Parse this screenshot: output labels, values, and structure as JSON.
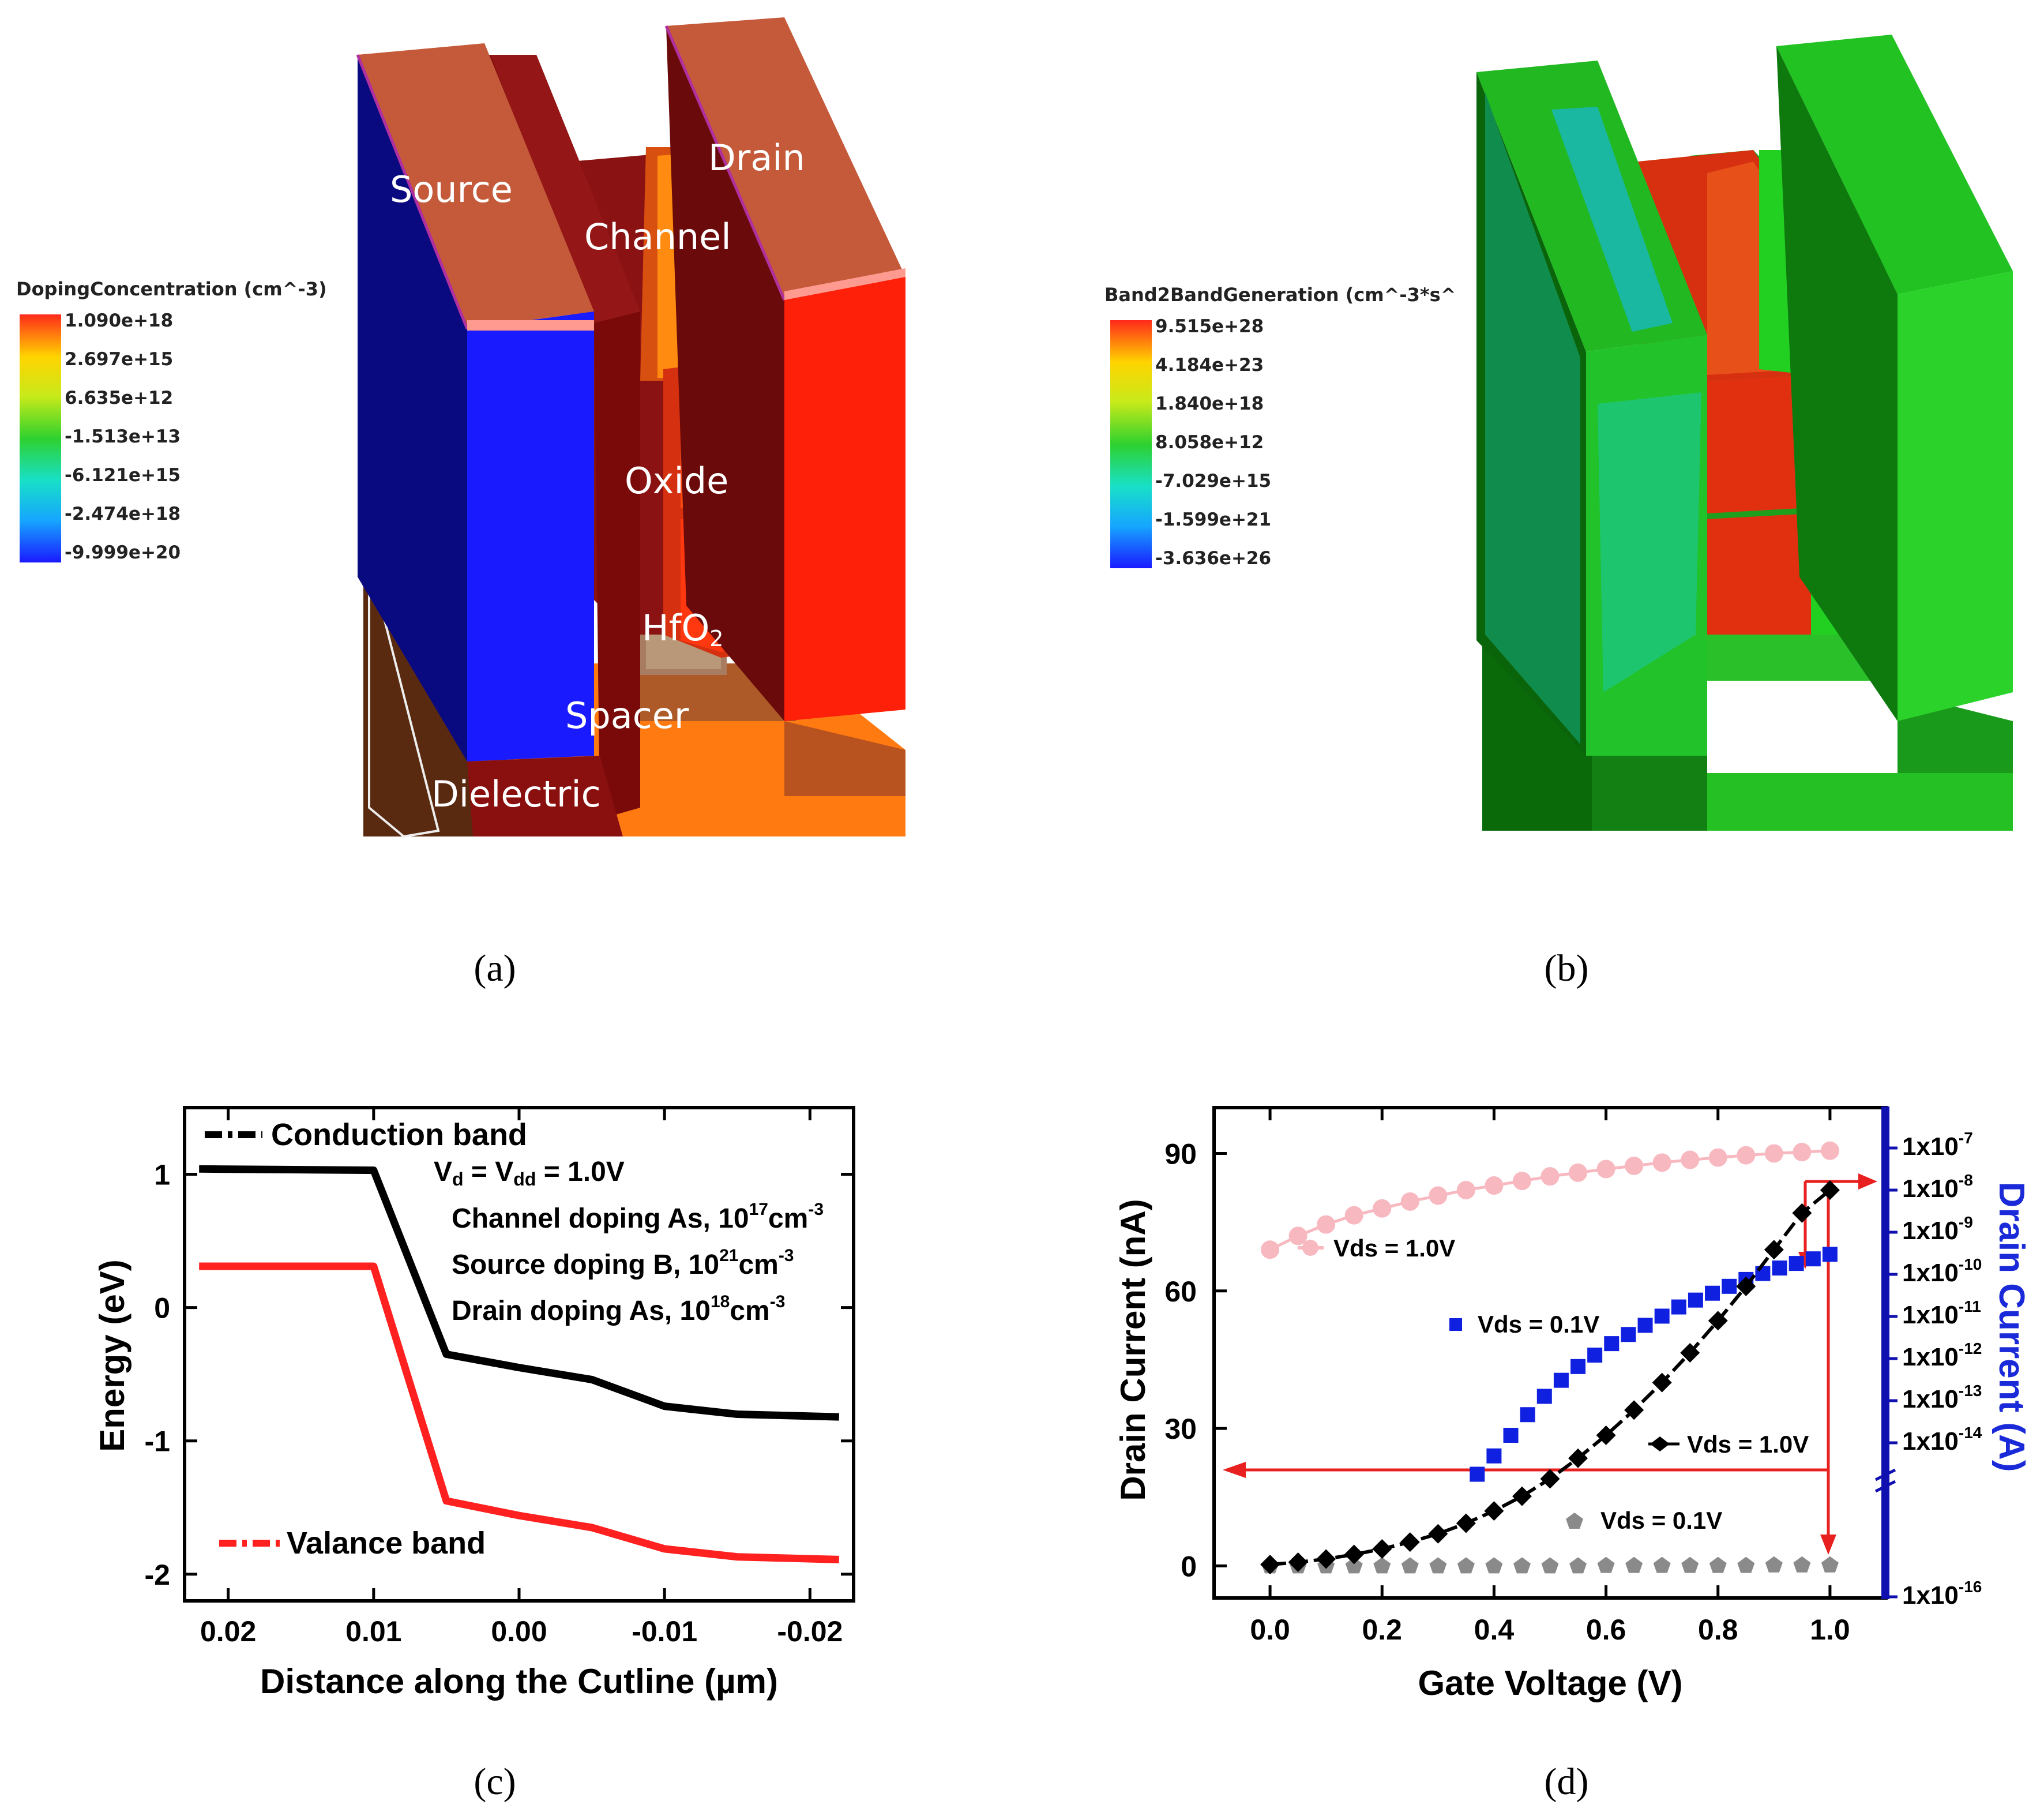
{
  "panel_a": {
    "caption": "(a)",
    "legend_title": "DopingConcentration (cm^-3)",
    "legend_values": [
      "1.090e+18",
      "2.697e+15",
      "6.635e+12",
      "-1.513e+13",
      "-6.121e+15",
      "-2.474e+18",
      "-9.999e+20"
    ],
    "regions": {
      "source": "Source",
      "drain": "Drain",
      "channel": "Channel",
      "oxide": "Oxide",
      "hfo2": "HfO",
      "hfo2_sub": "2",
      "spacer": "Spacer",
      "dielectric": "Dielectric"
    }
  },
  "panel_b": {
    "caption": "(b)",
    "legend_title": "Band2BandGeneration (cm^-3*s^",
    "legend_values": [
      "9.515e+28",
      "4.184e+23",
      "1.840e+18",
      "8.058e+12",
      "-7.029e+15",
      "-1.599e+21",
      "-3.636e+26"
    ]
  },
  "panel_c": {
    "caption": "(c)",
    "annotations": {
      "vd_a": "V",
      "vd_b": "d",
      "vd_c": " = V",
      "vd_d": "dd",
      "vd_e": " = 1.0V",
      "ch_a": "Channel doping As, 10",
      "ch_exp": "17",
      "ch_unit": "cm",
      "ch_uexp": "-3",
      "src_a": "Source doping B, 10",
      "src_exp": "21",
      "src_unit": "cm",
      "src_uexp": "-3",
      "dr_a": "Drain doping As, 10",
      "dr_exp": "18",
      "dr_unit": "cm",
      "dr_uexp": "-3"
    }
  },
  "panel_d": {
    "caption": "(d)",
    "annotations": {
      "vds_pink": "Vds = 1.0V",
      "vds_blue": "Vds = 0.1V",
      "vds_black": "Vds = 1.0V",
      "vds_gray": "Vds = 0.1V"
    },
    "right_axis_label": "Drain Current (A)",
    "right_ticks": [
      {
        "base": "1x10",
        "exp": "-7"
      },
      {
        "base": "1x10",
        "exp": "-8"
      },
      {
        "base": "1x10",
        "exp": "-9"
      },
      {
        "base": "1x10",
        "exp": "-10"
      },
      {
        "base": "1x10",
        "exp": "-11"
      },
      {
        "base": "1x10",
        "exp": "-12"
      },
      {
        "base": "1x10",
        "exp": "-13"
      },
      {
        "base": "1x10",
        "exp": "-14"
      },
      {
        "base": "1x10",
        "exp": "-16"
      }
    ]
  },
  "chart_data": [
    {
      "type": "line",
      "title": "",
      "xlabel": "Distance along the Cutline (µm)",
      "ylabel": "Energy (eV)",
      "xlim": [
        0.023,
        -0.023
      ],
      "ylim": [
        -2.2,
        1.5
      ],
      "x_ticks": [
        "0.02",
        "0.01",
        "0.00",
        "-0.01",
        "-0.02"
      ],
      "x_tick_values": [
        0.02,
        0.01,
        0.0,
        -0.01,
        -0.02
      ],
      "y_ticks": [
        "1",
        "0",
        "-1",
        "-2"
      ],
      "y_tick_values": [
        1,
        0,
        -1,
        -2
      ],
      "series": [
        {
          "name": "Conduction band",
          "color": "#000000",
          "x": [
            0.022,
            0.01,
            0.005,
            0.0,
            -0.005,
            -0.01,
            -0.015,
            -0.022
          ],
          "y": [
            1.04,
            1.03,
            -0.35,
            -0.45,
            -0.54,
            -0.74,
            -0.8,
            -0.82
          ]
        },
        {
          "name": "Valance band",
          "color": "#ff2020",
          "x": [
            0.022,
            0.01,
            0.005,
            0.0,
            -0.005,
            -0.01,
            -0.015,
            -0.022
          ],
          "y": [
            0.31,
            0.31,
            -1.45,
            -1.56,
            -1.65,
            -1.81,
            -1.87,
            -1.89
          ]
        }
      ]
    },
    {
      "type": "scatter",
      "title": "",
      "xlabel": "Gate Voltage (V)",
      "ylabel": "Drain Current (nA)",
      "xlim": [
        -0.1,
        1.1
      ],
      "ylim": [
        -7,
        100
      ],
      "x_ticks": [
        "0.0",
        "0.2",
        "0.4",
        "0.6",
        "0.8",
        "1.0"
      ],
      "x_tick_values": [
        0,
        0.2,
        0.4,
        0.6,
        0.8,
        1.0
      ],
      "y_ticks": [
        "0",
        "30",
        "60",
        "90"
      ],
      "y_tick_values": [
        0,
        30,
        60,
        90
      ],
      "series": [
        {
          "name": "Vds = 1.0V (linear)",
          "color": "#000000",
          "marker": "diamond",
          "x": [
            0,
            0.05,
            0.1,
            0.15,
            0.2,
            0.25,
            0.3,
            0.35,
            0.4,
            0.45,
            0.5,
            0.55,
            0.6,
            0.65,
            0.7,
            0.75,
            0.8,
            0.85,
            0.9,
            0.95,
            1.0
          ],
          "y": [
            0.3,
            0.8,
            1.5,
            2.5,
            3.7,
            5.2,
            7.0,
            9.3,
            12,
            15.2,
            19,
            23.5,
            28.5,
            34,
            40,
            46.5,
            53.5,
            61,
            69,
            77,
            82
          ]
        },
        {
          "name": "Vds = 0.1V (linear)",
          "color": "#8a8a8a",
          "marker": "pentagon",
          "x": [
            0,
            0.05,
            0.1,
            0.15,
            0.2,
            0.25,
            0.3,
            0.35,
            0.4,
            0.45,
            0.5,
            0.55,
            0.6,
            0.65,
            0.7,
            0.75,
            0.8,
            0.85,
            0.9,
            0.95,
            1.0
          ],
          "y": [
            0,
            0,
            0,
            0,
            0,
            0,
            0,
            0,
            0,
            0,
            0,
            0,
            0.1,
            0.1,
            0.1,
            0.1,
            0.1,
            0.1,
            0.2,
            0.2,
            0.2
          ]
        },
        {
          "name": "Vds = 1.0V (log)",
          "color": "#f8b8c0",
          "marker": "circle",
          "x": [
            0,
            0.05,
            0.1,
            0.15,
            0.2,
            0.25,
            0.3,
            0.35,
            0.4,
            0.45,
            0.5,
            0.55,
            0.6,
            0.65,
            0.7,
            0.75,
            0.8,
            0.85,
            0.9,
            0.95,
            1.0
          ],
          "y": [
            69,
            72,
            74.5,
            76.5,
            78,
            79.5,
            80.8,
            82,
            83,
            84,
            85,
            85.8,
            86.6,
            87.3,
            88,
            88.6,
            89.1,
            89.6,
            90,
            90.3,
            90.6
          ]
        },
        {
          "name": "Vds = 0.1V (log)",
          "color": "#1020e0",
          "marker": "square",
          "x": [
            0.37,
            0.4,
            0.43,
            0.46,
            0.49,
            0.52,
            0.55,
            0.58,
            0.61,
            0.64,
            0.67,
            0.7,
            0.73,
            0.76,
            0.79,
            0.82,
            0.85,
            0.88,
            0.91,
            0.94,
            0.97,
            1.0
          ],
          "y": [
            20,
            24,
            28.5,
            33,
            37,
            40.5,
            43.5,
            46,
            48.5,
            50.5,
            52.5,
            54.5,
            56.5,
            58,
            59.5,
            61,
            62.5,
            63.8,
            65,
            66,
            67,
            68
          ]
        }
      ]
    }
  ]
}
